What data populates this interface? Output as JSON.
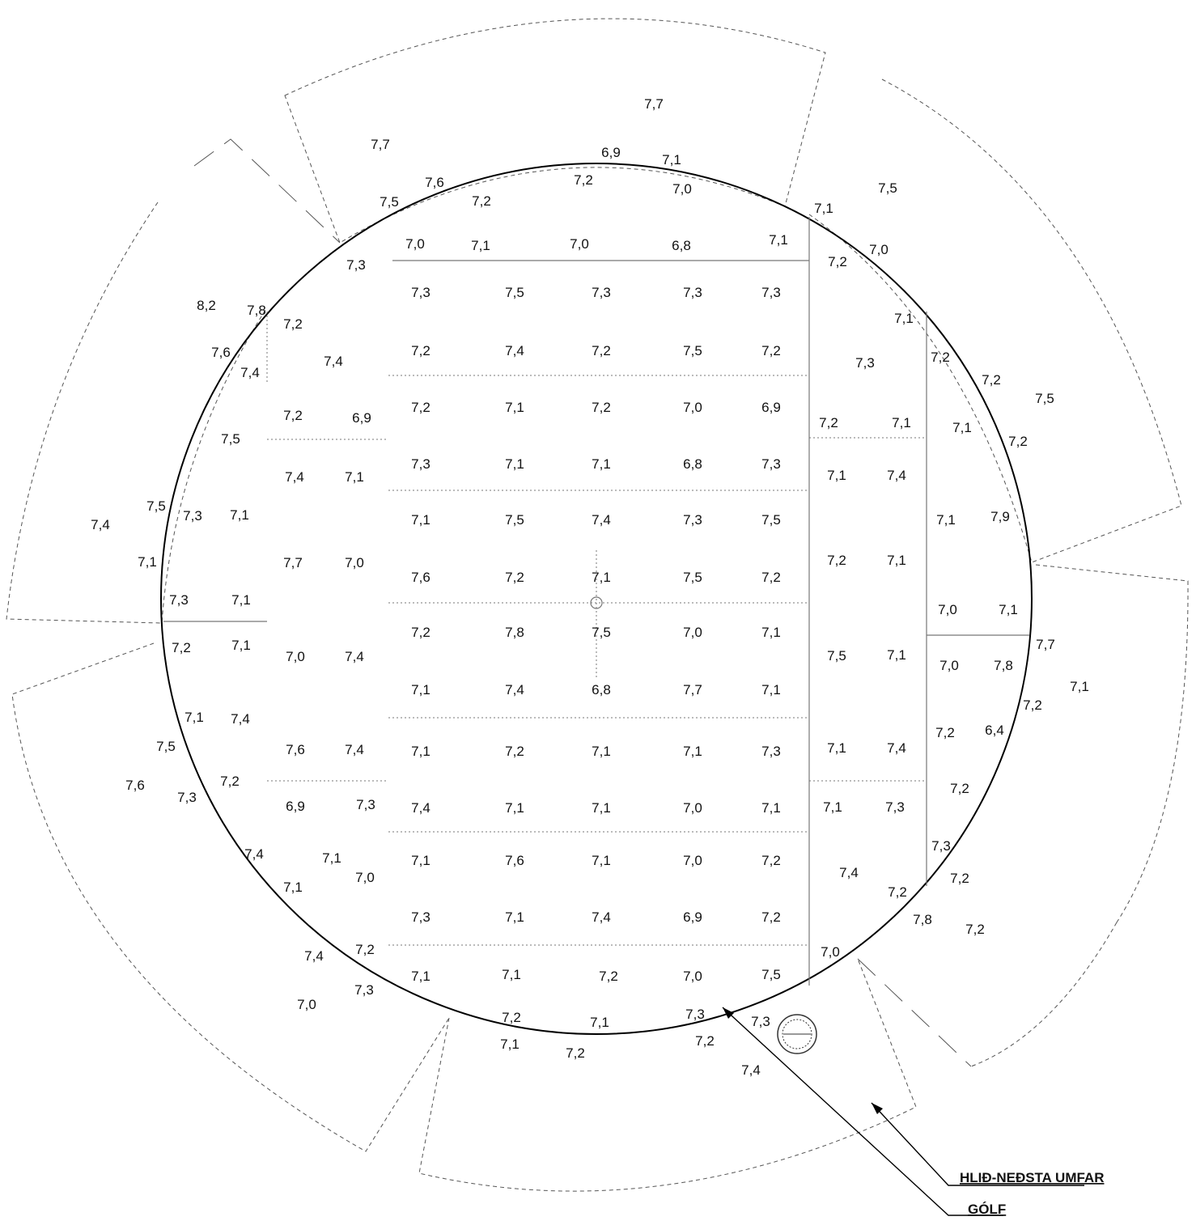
{
  "colors": {
    "ink": "#111111",
    "line": "#555555"
  },
  "legend": {
    "wall": "HLIÐ-NEÐSTA UMFAR",
    "floor": "GÓLF"
  },
  "readings": [
    {
      "v": "7,7"
    },
    {
      "v": "7,7"
    },
    {
      "v": "6,9"
    },
    {
      "v": "7,1"
    },
    {
      "v": "7,6"
    },
    {
      "v": "7,2"
    },
    {
      "v": "7,2"
    },
    {
      "v": "7,0"
    },
    {
      "v": "7,5"
    },
    {
      "v": "7,5"
    },
    {
      "v": "7,1"
    },
    {
      "v": "7,0"
    },
    {
      "v": "7,1"
    },
    {
      "v": "7,0"
    },
    {
      "v": "6,8"
    },
    {
      "v": "7,1"
    },
    {
      "v": "7,0"
    },
    {
      "v": "7,3"
    },
    {
      "v": "7,2"
    },
    {
      "v": "7,3"
    },
    {
      "v": "7,5"
    },
    {
      "v": "7,3"
    },
    {
      "v": "7,3"
    },
    {
      "v": "7,3"
    },
    {
      "v": "8,2"
    },
    {
      "v": "7,8"
    },
    {
      "v": "7,2"
    },
    {
      "v": "7,1"
    },
    {
      "v": "7,6"
    },
    {
      "v": "7,4"
    },
    {
      "v": "7,2"
    },
    {
      "v": "7,4"
    },
    {
      "v": "7,2"
    },
    {
      "v": "7,5"
    },
    {
      "v": "7,2"
    },
    {
      "v": "7,3"
    },
    {
      "v": "7,2"
    },
    {
      "v": "7,4"
    },
    {
      "v": "7,2"
    },
    {
      "v": "7,2"
    },
    {
      "v": "6,9"
    },
    {
      "v": "7,2"
    },
    {
      "v": "7,1"
    },
    {
      "v": "7,2"
    },
    {
      "v": "7,0"
    },
    {
      "v": "6,9"
    },
    {
      "v": "7,2"
    },
    {
      "v": "7,1"
    },
    {
      "v": "7,5"
    },
    {
      "v": "7,1"
    },
    {
      "v": "7,2"
    },
    {
      "v": "7,5"
    },
    {
      "v": "7,4"
    },
    {
      "v": "7,1"
    },
    {
      "v": "7,3"
    },
    {
      "v": "7,1"
    },
    {
      "v": "7,1"
    },
    {
      "v": "6,8"
    },
    {
      "v": "7,3"
    },
    {
      "v": "7,1"
    },
    {
      "v": "7,4"
    },
    {
      "v": "7,5"
    },
    {
      "v": "7,3"
    },
    {
      "v": "7,1"
    },
    {
      "v": "7,1"
    },
    {
      "v": "7,5"
    },
    {
      "v": "7,4"
    },
    {
      "v": "7,3"
    },
    {
      "v": "7,5"
    },
    {
      "v": "7,1"
    },
    {
      "v": "7,9"
    },
    {
      "v": "7,4"
    },
    {
      "v": "7,1"
    },
    {
      "v": "7,7"
    },
    {
      "v": "7,0"
    },
    {
      "v": "7,2"
    },
    {
      "v": "7,1"
    },
    {
      "v": "7,6"
    },
    {
      "v": "7,2"
    },
    {
      "v": "7,1"
    },
    {
      "v": "7,5"
    },
    {
      "v": "7,2"
    },
    {
      "v": "7,3"
    },
    {
      "v": "7,1"
    },
    {
      "v": "7,0"
    },
    {
      "v": "7,1"
    },
    {
      "v": "7,2"
    },
    {
      "v": "7,8"
    },
    {
      "v": "7,5"
    },
    {
      "v": "7,0"
    },
    {
      "v": "7,1"
    },
    {
      "v": "7,2"
    },
    {
      "v": "7,1"
    },
    {
      "v": "7,0"
    },
    {
      "v": "7,4"
    },
    {
      "v": "7,5"
    },
    {
      "v": "7,1"
    },
    {
      "v": "7,0"
    },
    {
      "v": "7,8"
    },
    {
      "v": "7,7"
    },
    {
      "v": "7,1"
    },
    {
      "v": "7,2"
    },
    {
      "v": "7,1"
    },
    {
      "v": "7,4"
    },
    {
      "v": "6,8"
    },
    {
      "v": "7,7"
    },
    {
      "v": "7,1"
    },
    {
      "v": "7,1"
    },
    {
      "v": "7,4"
    },
    {
      "v": "7,2"
    },
    {
      "v": "6,4"
    },
    {
      "v": "7,5"
    },
    {
      "v": "7,6"
    },
    {
      "v": "7,4"
    },
    {
      "v": "7,1"
    },
    {
      "v": "7,2"
    },
    {
      "v": "7,1"
    },
    {
      "v": "7,1"
    },
    {
      "v": "7,3"
    },
    {
      "v": "7,1"
    },
    {
      "v": "7,4"
    },
    {
      "v": "7,6"
    },
    {
      "v": "7,2"
    },
    {
      "v": "7,3"
    },
    {
      "v": "7,2"
    },
    {
      "v": "6,9"
    },
    {
      "v": "7,3"
    },
    {
      "v": "7,4"
    },
    {
      "v": "7,1"
    },
    {
      "v": "7,1"
    },
    {
      "v": "7,0"
    },
    {
      "v": "7,1"
    },
    {
      "v": "7,1"
    },
    {
      "v": "7,3"
    },
    {
      "v": "7,4"
    },
    {
      "v": "7,1"
    },
    {
      "v": "7,1"
    },
    {
      "v": "7,6"
    },
    {
      "v": "7,1"
    },
    {
      "v": "7,0"
    },
    {
      "v": "7,2"
    },
    {
      "v": "7,3"
    },
    {
      "v": "7,4"
    },
    {
      "v": "7,2"
    },
    {
      "v": "7,1"
    },
    {
      "v": "7,0"
    },
    {
      "v": "7,2"
    },
    {
      "v": "7,3"
    },
    {
      "v": "7,1"
    },
    {
      "v": "7,4"
    },
    {
      "v": "6,9"
    },
    {
      "v": "7,2"
    },
    {
      "v": "7,8"
    },
    {
      "v": "7,2"
    },
    {
      "v": "7,4"
    },
    {
      "v": "7,2"
    },
    {
      "v": "7,0"
    },
    {
      "v": "7,1"
    },
    {
      "v": "7,1"
    },
    {
      "v": "7,2"
    },
    {
      "v": "7,0"
    },
    {
      "v": "7,5"
    },
    {
      "v": "7,0"
    },
    {
      "v": "7,3"
    },
    {
      "v": "7,2"
    },
    {
      "v": "7,1"
    },
    {
      "v": "7,3"
    },
    {
      "v": "7,3"
    },
    {
      "v": "7,1"
    },
    {
      "v": "7,2"
    },
    {
      "v": "7,2"
    },
    {
      "v": "7,4"
    }
  ]
}
